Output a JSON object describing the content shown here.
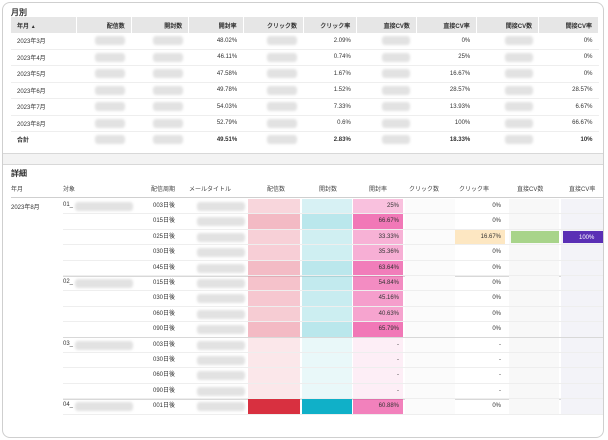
{
  "monthly": {
    "title": "月別",
    "columns": [
      "年月",
      "配信数",
      "開封数",
      "開封率",
      "クリック数",
      "クリック率",
      "直接CV数",
      "直接CV率",
      "間接CV数",
      "間接CV率"
    ],
    "sort_icon": "caret-up-icon",
    "rows": [
      {
        "month": "2023年3月",
        "open_rate": "48.02%",
        "click_rate": "2.09%",
        "direct_cv_rate": "0%",
        "indirect_cv_rate": "0%"
      },
      {
        "month": "2023年4月",
        "open_rate": "46.11%",
        "click_rate": "0.74%",
        "direct_cv_rate": "25%",
        "indirect_cv_rate": "0%"
      },
      {
        "month": "2023年5月",
        "open_rate": "47.58%",
        "click_rate": "1.67%",
        "direct_cv_rate": "16.67%",
        "indirect_cv_rate": "0%"
      },
      {
        "month": "2023年6月",
        "open_rate": "49.78%",
        "click_rate": "1.52%",
        "direct_cv_rate": "28.57%",
        "indirect_cv_rate": "28.57%"
      },
      {
        "month": "2023年7月",
        "open_rate": "54.03%",
        "click_rate": "7.33%",
        "direct_cv_rate": "13.93%",
        "indirect_cv_rate": "6.67%"
      },
      {
        "month": "2023年8月",
        "open_rate": "52.79%",
        "click_rate": "0.6%",
        "direct_cv_rate": "100%",
        "indirect_cv_rate": "66.67%"
      }
    ],
    "total": {
      "label": "合計",
      "open_rate": "49.51%",
      "click_rate": "2.83%",
      "direct_cv_rate": "18.33%",
      "indirect_cv_rate": "10%"
    }
  },
  "detail": {
    "title": "詳細",
    "columns": [
      "年月",
      "対象",
      "配信周期",
      "メールタイトル",
      "配信数",
      "開封数",
      "開封率",
      "クリック数",
      "クリック率",
      "直接CV数",
      "直接CV率"
    ],
    "month": "2023年8月",
    "groups": [
      "01_",
      "02_",
      "03_",
      "04_"
    ],
    "rows": [
      {
        "period": "003日後",
        "open_rate": "25%",
        "click_rate": "0%",
        "open_level": 0.25
      },
      {
        "period": "015日後",
        "open_rate": "66.67%",
        "click_rate": "0%",
        "open_level": 0.6667
      },
      {
        "period": "025日後",
        "open_rate": "33.33%",
        "click_rate": "0%",
        "open_level": 0.3333,
        "click_count_tint": "16.67%",
        "direct_cv_rate": "100%"
      },
      {
        "period": "030日後",
        "open_rate": "35.36%",
        "click_rate": "0%",
        "open_level": 0.3536
      },
      {
        "period": "045日後",
        "open_rate": "63.64%",
        "click_rate": "0%",
        "open_level": 0.6364
      },
      {
        "period": "015日後",
        "open_rate": "54.84%",
        "click_rate": "0%",
        "open_level": 0.5484
      },
      {
        "period": "030日後",
        "open_rate": "45.16%",
        "click_rate": "0%",
        "open_level": 0.4516
      },
      {
        "period": "060日後",
        "open_rate": "40.63%",
        "click_rate": "0%",
        "open_level": 0.4063
      },
      {
        "period": "090日後",
        "open_rate": "65.79%",
        "click_rate": "0%",
        "open_level": 0.6579
      },
      {
        "period": "003日後",
        "open_rate": "-",
        "click_rate": "-",
        "open_level": 0
      },
      {
        "period": "030日後",
        "open_rate": "-",
        "click_rate": "-",
        "open_level": 0
      },
      {
        "period": "060日後",
        "open_rate": "-",
        "click_rate": "-",
        "open_level": 0
      },
      {
        "period": "090日後",
        "open_rate": "-",
        "click_rate": "-",
        "open_level": 0
      },
      {
        "period": "001日後",
        "open_rate": "60.88%",
        "click_rate": "0%",
        "open_level": 0.6088
      }
    ]
  },
  "colors": {
    "header_bg": "#e6e6e6",
    "open_rate_max": "#e8228a",
    "delivery_tint": "#e8a0a8",
    "open_count_tint": "#7fd0d8",
    "cv_rate_bar": "#5a2fb5",
    "cv_count_bar": "#a8d48a",
    "click_rate_tint": "#fde7c2"
  }
}
